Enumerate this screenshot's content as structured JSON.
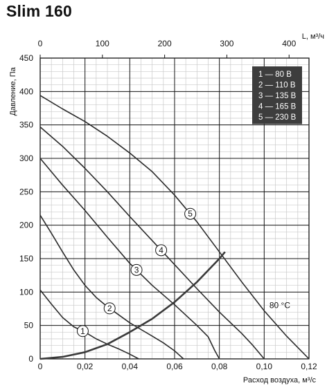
{
  "title": "Slim 160",
  "chart_data": {
    "type": "line",
    "xlabel": "Расход воздуха, м³/с",
    "ylabel": "Давление, Па",
    "x2label": "L, м³/ч",
    "xlim": [
      0,
      0.12
    ],
    "ylim": [
      0,
      450
    ],
    "x2lim": [
      0,
      432
    ],
    "x_ticks": [
      "0",
      "0,02",
      "0,04",
      "0,06",
      "0,08",
      "0,10",
      "0,12"
    ],
    "y_ticks": [
      "0",
      "50",
      "100",
      "150",
      "200",
      "250",
      "300",
      "350",
      "400",
      "450"
    ],
    "x2_ticks": [
      "0",
      "100",
      "200",
      "300",
      "400"
    ],
    "grid": true,
    "legend_position": "top-right",
    "legend": [
      "1 — 80 В",
      "2 — 110 В",
      "3 — 135 В",
      "4 — 165 В",
      "5 — 230 В"
    ],
    "series": [
      {
        "name": "1",
        "points": [
          [
            0,
            103
          ],
          [
            0.005,
            82
          ],
          [
            0.01,
            62
          ],
          [
            0.015,
            48
          ],
          [
            0.02,
            40
          ],
          [
            0.025,
            30
          ],
          [
            0.03,
            22
          ],
          [
            0.035,
            15
          ],
          [
            0.04,
            7
          ],
          [
            0.044,
            0
          ]
        ]
      },
      {
        "name": "2",
        "points": [
          [
            0,
            215
          ],
          [
            0.005,
            188
          ],
          [
            0.01,
            160
          ],
          [
            0.015,
            133
          ],
          [
            0.02,
            110
          ],
          [
            0.025,
            92
          ],
          [
            0.03,
            78
          ],
          [
            0.035,
            66
          ],
          [
            0.04,
            54
          ],
          [
            0.045,
            44
          ],
          [
            0.05,
            34
          ],
          [
            0.055,
            24
          ],
          [
            0.06,
            12
          ],
          [
            0.064,
            0
          ]
        ]
      },
      {
        "name": "3",
        "points": [
          [
            0,
            300
          ],
          [
            0.01,
            260
          ],
          [
            0.02,
            222
          ],
          [
            0.03,
            182
          ],
          [
            0.04,
            143
          ],
          [
            0.05,
            110
          ],
          [
            0.06,
            81
          ],
          [
            0.07,
            50
          ],
          [
            0.075,
            33
          ],
          [
            0.078,
            12
          ],
          [
            0.08,
            0
          ]
        ]
      },
      {
        "name": "4",
        "points": [
          [
            0,
            347
          ],
          [
            0.01,
            318
          ],
          [
            0.02,
            285
          ],
          [
            0.03,
            250
          ],
          [
            0.04,
            213
          ],
          [
            0.05,
            177
          ],
          [
            0.06,
            141
          ],
          [
            0.07,
            105
          ],
          [
            0.08,
            70
          ],
          [
            0.09,
            38
          ],
          [
            0.095,
            20
          ],
          [
            0.1,
            0
          ]
        ]
      },
      {
        "name": "5",
        "points": [
          [
            0,
            394
          ],
          [
            0.01,
            374
          ],
          [
            0.02,
            355
          ],
          [
            0.03,
            333
          ],
          [
            0.04,
            308
          ],
          [
            0.05,
            280
          ],
          [
            0.06,
            245
          ],
          [
            0.07,
            205
          ],
          [
            0.08,
            160
          ],
          [
            0.09,
            115
          ],
          [
            0.1,
            72
          ],
          [
            0.11,
            34
          ],
          [
            0.12,
            0
          ]
        ]
      },
      {
        "name": "80 °C",
        "points": [
          [
            0,
            0
          ],
          [
            0.01,
            3
          ],
          [
            0.02,
            10
          ],
          [
            0.03,
            22
          ],
          [
            0.04,
            40
          ],
          [
            0.05,
            60
          ],
          [
            0.06,
            85
          ],
          [
            0.07,
            115
          ],
          [
            0.08,
            150
          ],
          [
            0.0825,
            160
          ]
        ]
      }
    ],
    "annotation": "80 °C"
  }
}
